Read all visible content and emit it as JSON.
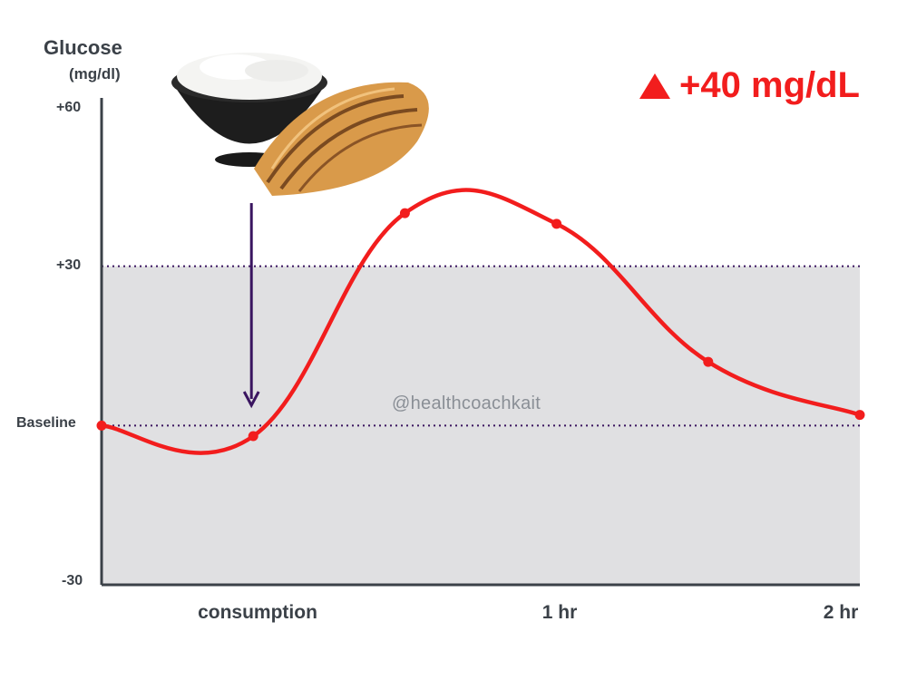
{
  "header": {
    "y_title": "Glucose",
    "y_unit": "(mg/dl)",
    "delta_text": "+40 mg/dL"
  },
  "watermark": "@healthcoachkait",
  "colors": {
    "line": "#f21d1d",
    "band": "#e0e0e2",
    "axis": "#3b4148",
    "arrow": "#3a1560",
    "dotted": "#3a1560"
  },
  "illustration": "rice-bowl-and-grilled-chicken",
  "chart_data": {
    "type": "line",
    "y_ticks": [
      {
        "value": 60,
        "label": "+60"
      },
      {
        "value": 30,
        "label": "+30"
      },
      {
        "value": 0,
        "label": "Baseline"
      },
      {
        "value": -30,
        "label": "-30"
      }
    ],
    "x_ticks": [
      {
        "value": 0.5,
        "label": "consumption"
      },
      {
        "value": 1.5,
        "label": "1 hr"
      },
      {
        "value": 2.5,
        "label": "2 hr"
      }
    ],
    "xlim": [
      0,
      2.5
    ],
    "ylim": [
      -30,
      60
    ],
    "shaded_band": [
      -30,
      30
    ],
    "reference_lines": [
      0,
      30
    ],
    "annotation_arrow_x": 0.5,
    "series": [
      {
        "x": [
          0,
          0.5,
          1.0,
          1.5,
          2.0,
          2.5
        ],
        "values": [
          0,
          -2,
          40,
          38,
          12,
          2
        ]
      }
    ],
    "grid": false
  }
}
